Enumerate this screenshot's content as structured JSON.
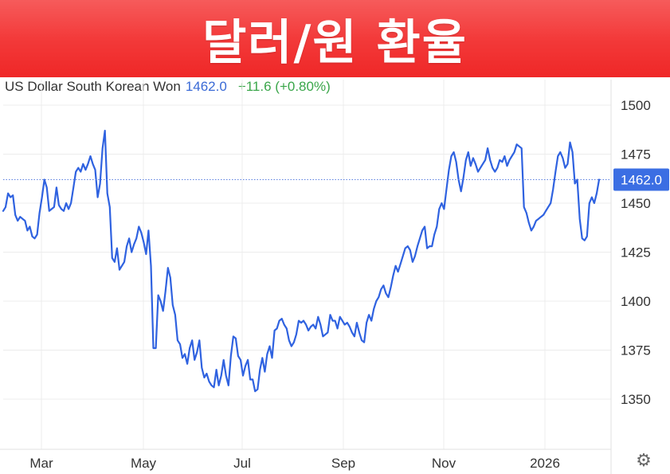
{
  "banner": {
    "title": "달러/원 환율"
  },
  "header": {
    "instrument": "US Dollar South Korean Won",
    "price": "1462.0",
    "change": "+11.6 (+0.80%)"
  },
  "settings_icon": "gear-icon",
  "colors": {
    "banner": "#f33a3a",
    "line": "#2f62e0",
    "price_text": "#3a6ad6",
    "change_text": "#3aa64a",
    "last_price_badge": "#3b6ee3"
  },
  "chart_data": {
    "type": "line",
    "title": "",
    "xlabel": "",
    "ylabel": "",
    "x_tick_labels": [
      "Mar",
      "May",
      "Jul",
      "Sep",
      "Nov",
      "2026"
    ],
    "y_ticks": [
      1350,
      1375,
      1400,
      1425,
      1450,
      1475,
      1500
    ],
    "ylim": [
      1325,
      1512
    ],
    "grid": true,
    "last_value": 1462.0,
    "last_value_label": "1462.0",
    "series": [
      {
        "values": [
          1446,
          1448,
          1455,
          1453,
          1454,
          1444,
          1441,
          1443,
          1442,
          1441,
          1436,
          1438,
          1433,
          1432,
          1434,
          1445,
          1453,
          1462,
          1458,
          1446,
          1447,
          1448,
          1458,
          1449,
          1447,
          1446,
          1450,
          1447,
          1450,
          1458,
          1466,
          1468,
          1466,
          1470,
          1467,
          1470,
          1474,
          1470,
          1467,
          1453,
          1460,
          1478,
          1487,
          1455,
          1448,
          1422,
          1420,
          1427,
          1416,
          1418,
          1420,
          1428,
          1432,
          1425,
          1429,
          1432,
          1438,
          1435,
          1430,
          1424,
          1436,
          1418,
          1376,
          1376,
          1403,
          1400,
          1395,
          1405,
          1417,
          1412,
          1398,
          1393,
          1380,
          1378,
          1371,
          1373,
          1368,
          1376,
          1380,
          1370,
          1374,
          1380,
          1366,
          1361,
          1363,
          1359,
          1357,
          1356,
          1365,
          1357,
          1362,
          1370,
          1362,
          1357,
          1372,
          1382,
          1381,
          1372,
          1370,
          1362,
          1367,
          1370,
          1360,
          1360,
          1354,
          1355,
          1365,
          1371,
          1364,
          1373,
          1377,
          1371,
          1385,
          1386,
          1390,
          1391,
          1388,
          1386,
          1380,
          1377,
          1379,
          1383,
          1390,
          1389,
          1390,
          1388,
          1385,
          1387,
          1388,
          1386,
          1392,
          1388,
          1382,
          1383,
          1384,
          1393,
          1390,
          1390,
          1386,
          1392,
          1390,
          1388,
          1389,
          1387,
          1384,
          1382,
          1389,
          1384,
          1380,
          1379,
          1389,
          1393,
          1390,
          1396,
          1400,
          1402,
          1406,
          1408,
          1404,
          1402,
          1407,
          1413,
          1418,
          1415,
          1419,
          1423,
          1427,
          1428,
          1426,
          1420,
          1423,
          1428,
          1432,
          1436,
          1438,
          1427,
          1428,
          1428,
          1434,
          1438,
          1447,
          1450,
          1447,
          1457,
          1467,
          1474,
          1476,
          1471,
          1462,
          1456,
          1463,
          1472,
          1476,
          1469,
          1473,
          1470,
          1466,
          1468,
          1470,
          1472,
          1478,
          1472,
          1468,
          1466,
          1468,
          1472,
          1471,
          1474,
          1469,
          1472,
          1474,
          1476,
          1480,
          1479,
          1478,
          1448,
          1445,
          1440,
          1436,
          1438,
          1441,
          1442,
          1443,
          1444,
          1446,
          1448,
          1450,
          1457,
          1466,
          1474,
          1476,
          1473,
          1468,
          1470,
          1481,
          1476,
          1460,
          1462,
          1442,
          1432,
          1431,
          1433,
          1450,
          1453,
          1450,
          1455,
          1462
        ]
      }
    ]
  }
}
